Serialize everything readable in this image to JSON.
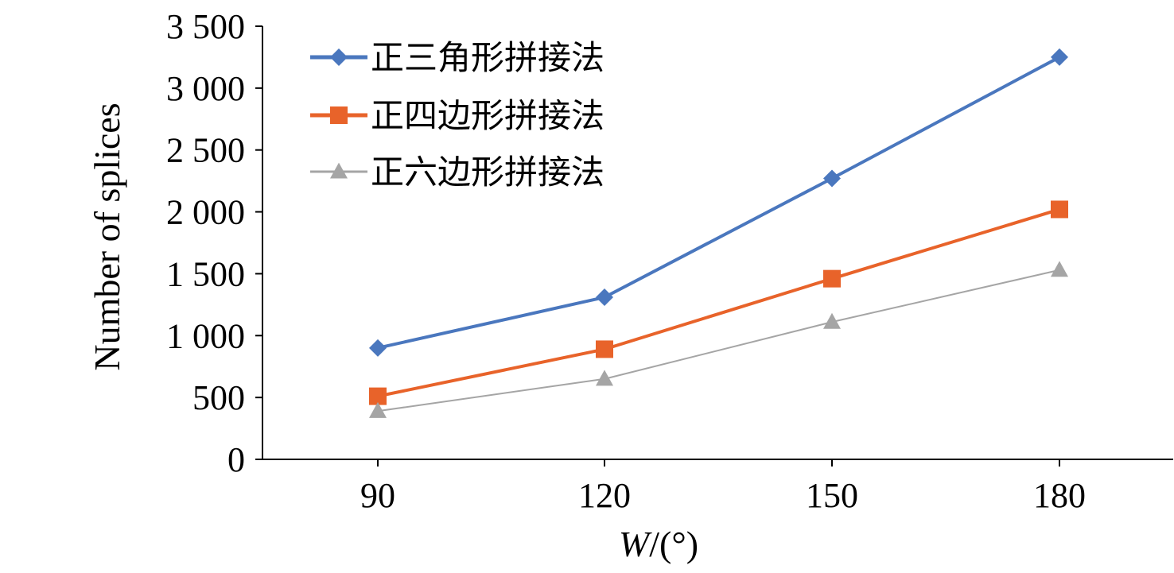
{
  "chart_data": {
    "type": "line",
    "x": [
      90,
      120,
      150,
      180
    ],
    "x_tick_labels": [
      "90",
      "120",
      "150",
      "180"
    ],
    "y_tick_labels": [
      "0",
      "500",
      "1 000",
      "1 500",
      "2 000",
      "2 500",
      "3 000",
      "3 500"
    ],
    "ylim": [
      0,
      3500
    ],
    "ylabel": "Number of splices",
    "xlabel_var": "W",
    "xlabel_unit": "/(°)",
    "grid": false,
    "legend_position": "top-left",
    "series": [
      {
        "name": "正三角形拼接法",
        "values": [
          900,
          1310,
          2270,
          3250
        ],
        "color": "#4A77BE",
        "marker": "diamond"
      },
      {
        "name": "正四边形拼接法",
        "values": [
          510,
          890,
          1460,
          2020
        ],
        "color": "#E8632A",
        "marker": "square"
      },
      {
        "name": "正六边形拼接法",
        "values": [
          390,
          650,
          1110,
          1530
        ],
        "color": "#A5A5A5",
        "marker": "triangle"
      }
    ]
  }
}
